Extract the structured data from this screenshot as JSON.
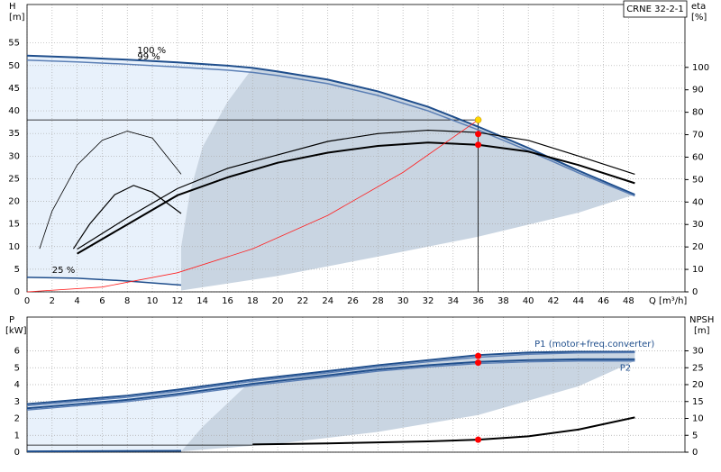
{
  "chart_data": [
    {
      "type": "line",
      "title": "CRNE 32-2-1",
      "y_label": "H",
      "y_unit": "[m]",
      "y2_label": "eta",
      "y2_unit": "[%]",
      "x_label": "Q [m³/h]",
      "xlim": [
        0,
        52.5
      ],
      "xticks": [
        0,
        2,
        4,
        6,
        8,
        10,
        12,
        14,
        16,
        18,
        20,
        22,
        24,
        26,
        28,
        30,
        32,
        34,
        36,
        38,
        40,
        42,
        44,
        46,
        48
      ],
      "ylim": [
        0,
        63.5
      ],
      "yticks": [
        0,
        5,
        10,
        15,
        20,
        25,
        30,
        35,
        40,
        45,
        50,
        55
      ],
      "y2lim": [
        0,
        128
      ],
      "y2ticks": [
        0,
        10,
        20,
        30,
        40,
        50,
        60,
        70,
        80,
        90,
        100
      ],
      "grid": true,
      "regions": [
        {
          "color": "#e8f1fb",
          "x": [
            0,
            4,
            8,
            12,
            16,
            18,
            16,
            14,
            13,
            12.3,
            12.3,
            8,
            4,
            0
          ],
          "values": [
            52.2,
            51.8,
            51.3,
            50.7,
            50,
            49.5,
            42,
            32,
            22,
            10,
            1.5,
            2.4,
            3,
            3.2
          ]
        },
        {
          "color": "#c9d5e2",
          "x": [
            18,
            20,
            24,
            28,
            32,
            36,
            40,
            44,
            48.5,
            44,
            36,
            28,
            20,
            12.3,
            12.3,
            13,
            14,
            16
          ],
          "values": [
            49.5,
            48.7,
            46.9,
            44.3,
            40.9,
            36.5,
            31.8,
            26.8,
            21.5,
            17.5,
            12.2,
            7.8,
            3.5,
            0.3,
            10,
            22,
            32,
            42
          ]
        }
      ],
      "series": [
        {
          "color": "#1f4e8c",
          "width": 2,
          "x": [
            0,
            4,
            8,
            12,
            16,
            18,
            20,
            24,
            28,
            32,
            36,
            40,
            44,
            48.5
          ],
          "values": [
            52.2,
            51.8,
            51.3,
            50.7,
            50,
            49.5,
            48.7,
            46.9,
            44.3,
            40.9,
            36.5,
            31.8,
            26.8,
            21.5
          ]
        },
        {
          "color": "#5b7fb5",
          "width": 1.5,
          "x": [
            0,
            4,
            8,
            12,
            16,
            18,
            20,
            24,
            28,
            32,
            36,
            40,
            44,
            48.5
          ],
          "values": [
            51.2,
            50.8,
            50.3,
            49.7,
            49,
            48.5,
            47.8,
            46,
            43.4,
            40,
            35.8,
            31.2,
            26.3,
            21.2
          ]
        },
        {
          "color": "#000000",
          "width": 1.2,
          "axis": "y2",
          "x": [
            4,
            8,
            12,
            16,
            20,
            24,
            28,
            32,
            36,
            40,
            44,
            48.5
          ],
          "values": [
            19,
            33,
            46,
            55,
            61,
            67,
            70.5,
            72,
            71,
            67.5,
            60.5,
            52.4
          ]
        },
        {
          "color": "#000000",
          "width": 2,
          "axis": "y2",
          "x": [
            4,
            8,
            12,
            16,
            20,
            24,
            28,
            32,
            36,
            40,
            44,
            48.5
          ],
          "values": [
            17,
            30,
            43,
            51,
            57.5,
            62,
            65,
            66.5,
            65.5,
            62.5,
            56.5,
            48.4
          ]
        },
        {
          "color": "#000000",
          "width": 0.8,
          "axis": "y2",
          "x": [
            1,
            2,
            4,
            6,
            8,
            10,
            12.3
          ],
          "values": [
            19.2,
            36,
            56.5,
            67.5,
            71.6,
            68.5,
            52.4
          ]
        },
        {
          "color": "#000000",
          "width": 1.2,
          "axis": "y2",
          "x": [
            3.7,
            5,
            7,
            8.5,
            10,
            12.3
          ],
          "values": [
            19.2,
            30.2,
            43.3,
            47.4,
            44.4,
            34.9
          ]
        },
        {
          "color": "#1f4e8c",
          "width": 1.5,
          "x": [
            0,
            4,
            8,
            12.3
          ],
          "values": [
            3.2,
            3,
            2.4,
            1.5
          ]
        },
        {
          "color": "#ff2020",
          "width": 0.8,
          "x": [
            0,
            6,
            12,
            18,
            24,
            30,
            36
          ],
          "values": [
            0,
            1.06,
            4.22,
            9.5,
            16.9,
            26.4,
            38
          ]
        },
        {
          "type": "scatter",
          "color": "#ff0000",
          "axis": "y2",
          "x": [
            36,
            36
          ],
          "values": [
            70.3,
            65.5
          ]
        }
      ],
      "operating_point": {
        "x": 36,
        "y": 38,
        "color": "#ffd700"
      },
      "annotations": [
        {
          "text": "100 %",
          "x": 8.8,
          "y": 53.3
        },
        {
          "text": "99 %",
          "x": 8.8,
          "y": 52
        },
        {
          "text": "25 %",
          "x": 2,
          "y": 4.8
        }
      ]
    },
    {
      "type": "line",
      "y_label": "P",
      "y_unit": "[kW]",
      "y2_label": "NPSH",
      "y2_unit": "[m]",
      "xlim": [
        0,
        52.5
      ],
      "ylim": [
        0,
        8
      ],
      "yticks": [
        0,
        1,
        2,
        3,
        4,
        5,
        6
      ],
      "y2lim": [
        0,
        40
      ],
      "y2ticks": [
        0,
        5,
        10,
        15,
        20,
        25,
        30
      ],
      "grid": true,
      "regions": [
        {
          "color": "#e8f1fb",
          "x": [
            0,
            4,
            8,
            12,
            18,
            14,
            12.3,
            0
          ],
          "values": [
            2.85,
            3.1,
            3.35,
            3.7,
            4.3,
            1.5,
            0.05,
            0.05
          ]
        },
        {
          "color": "#c9d5e2",
          "x": [
            18,
            24,
            28,
            32,
            36,
            40,
            44,
            48.5,
            48.5,
            44,
            36,
            28,
            20,
            12.3,
            14
          ],
          "values": [
            4.3,
            4.8,
            5.15,
            5.45,
            5.75,
            5.9,
            5.95,
            5.95,
            5.4,
            3.9,
            2.2,
            1.2,
            0.5,
            0.05,
            1.5
          ]
        }
      ],
      "series": [
        {
          "color": "#1f4e8c",
          "width": 2,
          "x": [
            0,
            4,
            8,
            12,
            18,
            24,
            28,
            32,
            36,
            40,
            44,
            48.5
          ],
          "values": [
            2.85,
            3.1,
            3.35,
            3.7,
            4.3,
            4.8,
            5.15,
            5.45,
            5.75,
            5.9,
            5.95,
            5.95
          ]
        },
        {
          "color": "#5b7fb5",
          "width": 1.5,
          "x": [
            0,
            4,
            8,
            12,
            18,
            24,
            28,
            32,
            36,
            40,
            44,
            48.5
          ],
          "values": [
            2.75,
            3,
            3.25,
            3.6,
            4.2,
            4.7,
            5.05,
            5.35,
            5.62,
            5.8,
            5.88,
            5.9
          ]
        },
        {
          "color": "#1f4e8c",
          "width": 2,
          "x": [
            0,
            4,
            8,
            12,
            18,
            24,
            28,
            32,
            36,
            40,
            44,
            48.5
          ],
          "values": [
            2.6,
            2.85,
            3.1,
            3.45,
            4.05,
            4.55,
            4.9,
            5.15,
            5.35,
            5.45,
            5.5,
            5.5
          ]
        },
        {
          "color": "#5b7fb5",
          "width": 1.5,
          "x": [
            0,
            4,
            8,
            12,
            18,
            24,
            28,
            32,
            36,
            40,
            44,
            48.5
          ],
          "values": [
            2.5,
            2.75,
            3,
            3.35,
            3.95,
            4.45,
            4.8,
            5.05,
            5.25,
            5.35,
            5.4,
            5.4
          ]
        },
        {
          "color": "#1f4e8c",
          "width": 2,
          "x": [
            0,
            12.3
          ],
          "values": [
            0.05,
            0.08
          ]
        },
        {
          "color": "#000000",
          "width": 0.8,
          "axis": "y2",
          "x": [
            0,
            18
          ],
          "values": [
            2.1,
            2.1
          ]
        },
        {
          "color": "#000000",
          "width": 2,
          "axis": "y2",
          "x": [
            18,
            24,
            28,
            32,
            36,
            40,
            44,
            46,
            48.5
          ],
          "values": [
            2.3,
            2.6,
            2.9,
            3.2,
            3.7,
            4.7,
            6.7,
            8.3,
            10.3
          ]
        },
        {
          "type": "scatter",
          "color": "#ff0000",
          "x": [
            36,
            36
          ],
          "values": [
            5.7,
            5.3
          ]
        },
        {
          "type": "scatter",
          "color": "#ff0000",
          "axis": "y2",
          "x": [
            36
          ],
          "values": [
            3.7
          ]
        }
      ],
      "annotations": [
        {
          "text": "P1 (motor+freq.converter)",
          "x": 40.5,
          "y": 6.4,
          "color": "#1f4e8c"
        },
        {
          "text": "P2",
          "x": 47.3,
          "y": 5.0,
          "color": "#1f4e8c"
        }
      ]
    }
  ]
}
